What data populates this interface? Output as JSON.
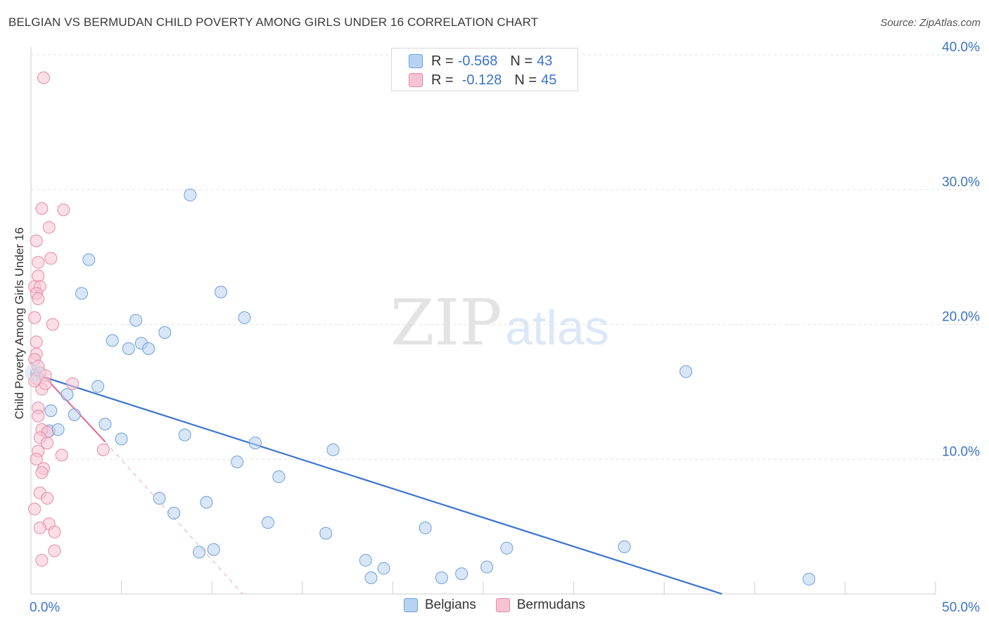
{
  "title": "BELGIAN VS BERMUDAN CHILD POVERTY AMONG GIRLS UNDER 16 CORRELATION CHART",
  "source": "Source: ZipAtlas.com",
  "watermark": {
    "zip": "ZIP",
    "atlas": "atlas"
  },
  "legend": {
    "rows": [
      {
        "r_label": "R =",
        "r_value": "-0.568",
        "n_label": "N =",
        "n_value": "43",
        "color": "#b8d2f3",
        "border": "#6f9fd8"
      },
      {
        "r_label": "R =",
        "r_value": "-0.128",
        "n_label": "N =",
        "n_value": "45",
        "color": "#f7c3d2",
        "border": "#e58aa6"
      }
    ]
  },
  "bottom_legend": {
    "belgians": "Belgians",
    "bermudans": "Bermudans"
  },
  "chart_data": {
    "type": "scatter",
    "title": "BELGIAN VS BERMUDAN CHILD POVERTY AMONG GIRLS UNDER 16 CORRELATION CHART",
    "xlabel": "",
    "ylabel": "Child Poverty Among Girls Under 16",
    "xlim": [
      0,
      50
    ],
    "ylim": [
      0,
      40
    ],
    "x_tick_labels": [
      "0.0%",
      "50.0%"
    ],
    "y_ticks": [
      10,
      20,
      30,
      40
    ],
    "y_tick_labels": [
      "10.0%",
      "20.0%",
      "30.0%",
      "40.0%"
    ],
    "grid": true,
    "series": [
      {
        "name": "Belgians",
        "color": "#b8d2f3",
        "edge": "#6f9fd8",
        "trend_color": "#3a74d0",
        "trend": {
          "x": [
            0,
            38.2
          ],
          "y": [
            16.4,
            0
          ]
        },
        "points": [
          [
            0.3,
            16.3
          ],
          [
            1.0,
            12.1
          ],
          [
            1.1,
            13.6
          ],
          [
            1.5,
            12.2
          ],
          [
            2.0,
            14.8
          ],
          [
            2.4,
            13.3
          ],
          [
            3.2,
            24.8
          ],
          [
            2.8,
            22.3
          ],
          [
            3.7,
            15.4
          ],
          [
            4.1,
            12.6
          ],
          [
            4.5,
            18.8
          ],
          [
            5.0,
            11.5
          ],
          [
            5.4,
            18.2
          ],
          [
            5.8,
            20.3
          ],
          [
            6.1,
            18.6
          ],
          [
            6.5,
            18.2
          ],
          [
            7.1,
            7.1
          ],
          [
            7.4,
            19.4
          ],
          [
            7.9,
            6.0
          ],
          [
            8.5,
            11.8
          ],
          [
            8.8,
            29.6
          ],
          [
            9.3,
            3.1
          ],
          [
            9.7,
            6.8
          ],
          [
            10.1,
            3.3
          ],
          [
            10.5,
            22.4
          ],
          [
            11.4,
            9.8
          ],
          [
            11.8,
            20.5
          ],
          [
            12.4,
            11.2
          ],
          [
            13.1,
            5.3
          ],
          [
            13.7,
            8.7
          ],
          [
            16.3,
            4.5
          ],
          [
            16.7,
            10.7
          ],
          [
            18.5,
            2.5
          ],
          [
            18.8,
            1.2
          ],
          [
            19.5,
            1.9
          ],
          [
            21.8,
            4.9
          ],
          [
            22.7,
            1.2
          ],
          [
            23.8,
            1.5
          ],
          [
            25.2,
            2.0
          ],
          [
            26.3,
            3.4
          ],
          [
            32.8,
            3.5
          ],
          [
            36.2,
            16.5
          ],
          [
            43.0,
            1.1
          ]
        ]
      },
      {
        "name": "Bermudans",
        "color": "#f7c3d2",
        "edge": "#e58aa6",
        "trend_color": "#e0709a",
        "trend": {
          "x": [
            0,
            4.1
          ],
          "y": [
            17.2,
            11.3
          ]
        },
        "trend_ext": {
          "x": [
            4.1,
            11.7
          ],
          "y": [
            11.3,
            0
          ]
        },
        "points": [
          [
            0.7,
            38.3
          ],
          [
            0.6,
            28.6
          ],
          [
            1.0,
            27.2
          ],
          [
            1.8,
            28.5
          ],
          [
            0.3,
            26.2
          ],
          [
            0.4,
            24.6
          ],
          [
            1.1,
            24.9
          ],
          [
            0.4,
            23.6
          ],
          [
            0.2,
            22.8
          ],
          [
            0.5,
            22.8
          ],
          [
            0.3,
            22.3
          ],
          [
            0.4,
            21.9
          ],
          [
            1.2,
            20.0
          ],
          [
            0.2,
            20.5
          ],
          [
            0.3,
            18.7
          ],
          [
            0.3,
            17.8
          ],
          [
            0.2,
            17.4
          ],
          [
            0.4,
            16.9
          ],
          [
            0.5,
            16.4
          ],
          [
            0.3,
            16.0
          ],
          [
            0.8,
            16.2
          ],
          [
            0.6,
            15.2
          ],
          [
            2.3,
            15.6
          ],
          [
            0.4,
            13.8
          ],
          [
            0.6,
            12.2
          ],
          [
            0.9,
            12.0
          ],
          [
            0.5,
            11.6
          ],
          [
            0.9,
            11.2
          ],
          [
            0.4,
            10.6
          ],
          [
            1.7,
            10.3
          ],
          [
            4.0,
            10.7
          ],
          [
            0.3,
            10.0
          ],
          [
            0.7,
            9.3
          ],
          [
            0.6,
            9.0
          ],
          [
            0.5,
            7.5
          ],
          [
            0.9,
            7.1
          ],
          [
            0.2,
            6.3
          ],
          [
            1.0,
            5.2
          ],
          [
            0.5,
            4.9
          ],
          [
            1.3,
            4.6
          ],
          [
            0.6,
            2.5
          ],
          [
            1.3,
            3.2
          ],
          [
            0.4,
            13.2
          ],
          [
            0.8,
            15.6
          ],
          [
            0.2,
            15.8
          ]
        ]
      }
    ]
  }
}
